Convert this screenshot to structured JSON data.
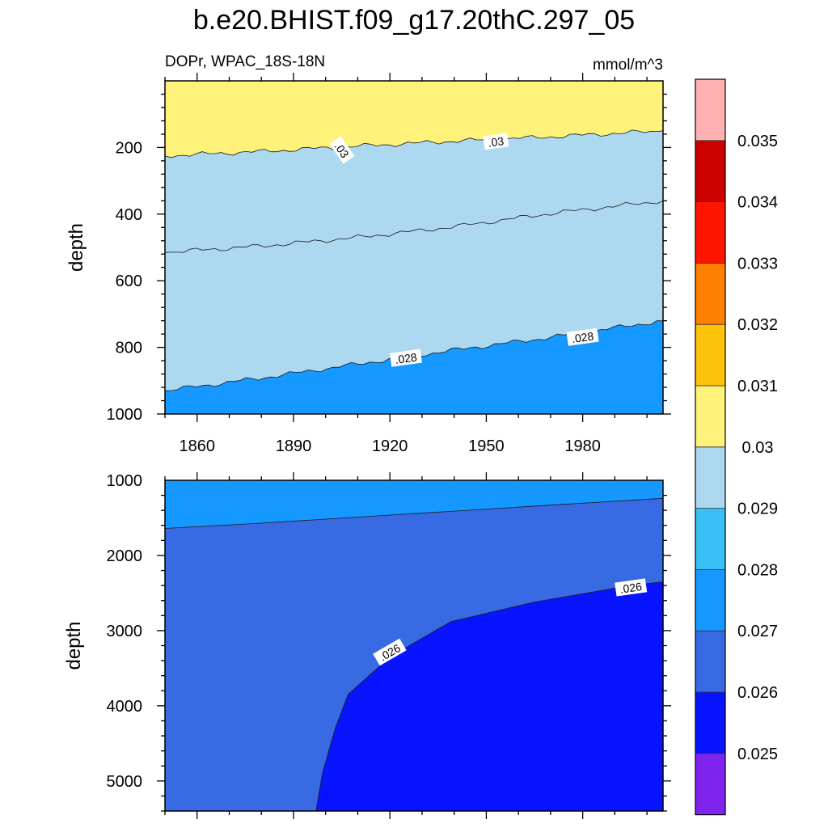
{
  "title": "b.e20.BHIST.f09_g17.20thC.297_05",
  "subtitle_left": "DOPr, WPAC_18S-18N",
  "subtitle_right": "mmol/m^3",
  "colorbar": {
    "colors": [
      "#7f24ee",
      "#0814ff",
      "#386be3",
      "#1598ff",
      "#38c0f7",
      "#acd8f0",
      "#fef27a",
      "#fdc20b",
      "#ff7f00",
      "#ff1400",
      "#cd0000",
      "#ffb1b1"
    ],
    "labels": [
      "0.025",
      "0.026",
      "0.027",
      "0.028",
      "0.029",
      "0.03",
      "0.031",
      "0.032",
      "0.033",
      "0.034",
      "0.035"
    ]
  },
  "chart_data": [
    {
      "type": "heatmap",
      "subtype": "filled-contour",
      "panel": "upper",
      "xlabel": "",
      "ylabel": "depth",
      "x_ticks": [
        "1860",
        "1890",
        "1920",
        "1950",
        "1980"
      ],
      "y_ticks": [
        "200",
        "400",
        "600",
        "800",
        "1000"
      ],
      "xlim": [
        1850,
        2005
      ],
      "ylim": [
        0,
        1000
      ],
      "y_inverted": true,
      "contours": [
        {
          "level": 0.03,
          "label": ".03",
          "x": [
            1850,
            1880,
            1910,
            1940,
            1970,
            2005
          ],
          "depth": [
            225,
            212,
            196,
            181,
            168,
            150
          ]
        },
        {
          "level": 0.029,
          "label": "",
          "x": [
            1850,
            1880,
            1910,
            1940,
            1970,
            2005
          ],
          "depth": [
            515,
            496,
            470,
            438,
            398,
            360
          ]
        },
        {
          "level": 0.028,
          "label": ".028",
          "x": [
            1850,
            1880,
            1910,
            1940,
            1970,
            2005
          ],
          "depth": [
            930,
            892,
            850,
            808,
            770,
            720
          ]
        }
      ],
      "contour_labels": [
        {
          "text": ".03",
          "x": 1905,
          "depth": 208
        },
        {
          "text": ".03",
          "x": 1953,
          "depth": 183
        },
        {
          "text": ".028",
          "x": 1925,
          "depth": 833
        },
        {
          "text": ".028",
          "x": 1980,
          "depth": 770
        }
      ]
    },
    {
      "type": "heatmap",
      "subtype": "filled-contour",
      "panel": "lower",
      "xlabel": "",
      "ylabel": "depth",
      "x_ticks": [],
      "y_ticks": [
        "1000",
        "2000",
        "3000",
        "4000",
        "5000"
      ],
      "xlim": [
        1850,
        2005
      ],
      "ylim": [
        1000,
        5400
      ],
      "y_inverted": true,
      "contours": [
        {
          "level": 0.027,
          "label": "",
          "x": [
            1850,
            1880,
            1910,
            1940,
            1970,
            2005
          ],
          "depth": [
            1640,
            1570,
            1490,
            1410,
            1330,
            1240
          ]
        },
        {
          "level": 0.026,
          "label": ".026",
          "x": [
            1897,
            1899,
            1903,
            1907,
            1920,
            1939,
            1965,
            1995,
            2005
          ],
          "depth": [
            5400,
            4900,
            4300,
            3850,
            3350,
            2880,
            2620,
            2400,
            2350
          ]
        }
      ],
      "contour_labels": [
        {
          "text": ".026",
          "x": 1920,
          "depth": 3290
        },
        {
          "text": ".026",
          "x": 1995,
          "depth": 2430
        }
      ]
    }
  ]
}
